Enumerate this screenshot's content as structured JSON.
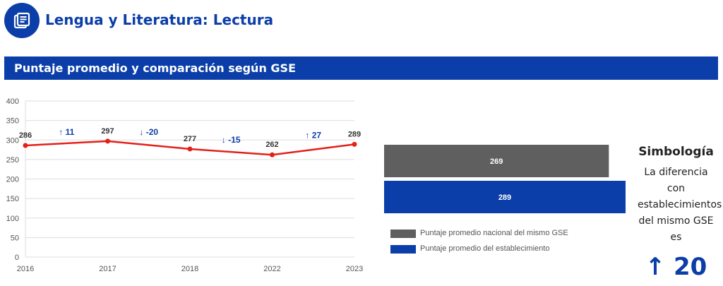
{
  "header": {
    "title": "Lengua y Literatura: Lectura",
    "icon": "newspaper-icon"
  },
  "section": {
    "title": "Puntaje promedio y comparación según GSE"
  },
  "colors": {
    "brand": "#0b3ea8",
    "line": "#e32119",
    "national_bar": "#5f5f5f",
    "school_bar": "#0b3ea8"
  },
  "chart_data": [
    {
      "type": "line",
      "x": [
        "2016",
        "2017",
        "2018",
        "2022",
        "2023"
      ],
      "series": [
        {
          "values": [
            286,
            297,
            277,
            262,
            289
          ]
        }
      ],
      "value_labels": [
        "286",
        "297",
        "277",
        "262",
        "289"
      ],
      "changes": [
        {
          "arrow": "↑",
          "text": "11"
        },
        {
          "arrow": "↓",
          "text": "-20"
        },
        {
          "arrow": "↓",
          "text": "-15"
        },
        {
          "arrow": "↑",
          "text": "27"
        }
      ],
      "yticks": [
        "0",
        "50",
        "100",
        "150",
        "200",
        "250",
        "300",
        "350",
        "400"
      ],
      "ylim": [
        0,
        400
      ],
      "grid": true
    },
    {
      "type": "bar",
      "orientation": "horizontal",
      "series": [
        {
          "name": "Puntaje promedio nacional del mismo GSE",
          "values": [
            269
          ],
          "label": "269"
        },
        {
          "name": "Puntaje promedio del establecimiento",
          "values": [
            289
          ],
          "label": "289"
        }
      ],
      "legend_position": "bottom-left"
    }
  ],
  "simbologia": {
    "title": "Simbología",
    "text": "La diferencia con establecimientos del mismo GSE es",
    "arrow": "↑",
    "value": "20"
  }
}
